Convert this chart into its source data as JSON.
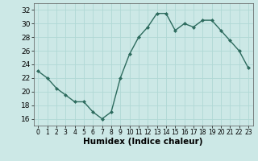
{
  "x": [
    0,
    1,
    2,
    3,
    4,
    5,
    6,
    7,
    8,
    9,
    10,
    11,
    12,
    13,
    14,
    15,
    16,
    17,
    18,
    19,
    20,
    21,
    22,
    23
  ],
  "y": [
    23,
    22,
    20.5,
    19.5,
    18.5,
    18.5,
    17,
    16,
    17,
    22,
    25.5,
    28,
    29.5,
    31.5,
    31.5,
    29,
    30,
    29.5,
    30.5,
    30.5,
    29,
    27.5,
    26,
    23.5
  ],
  "line_color": "#2d6b5e",
  "marker": "D",
  "marker_size": 2.0,
  "bg_color": "#cce8e6",
  "grid_color": "#b0d8d5",
  "xlabel": "Humidex (Indice chaleur)",
  "ylim": [
    15,
    33
  ],
  "xlim": [
    -0.5,
    23.5
  ],
  "yticks": [
    16,
    18,
    20,
    22,
    24,
    26,
    28,
    30,
    32
  ],
  "xticks": [
    0,
    1,
    2,
    3,
    4,
    5,
    6,
    7,
    8,
    9,
    10,
    11,
    12,
    13,
    14,
    15,
    16,
    17,
    18,
    19,
    20,
    21,
    22,
    23
  ],
  "xlabel_fontsize": 7.5,
  "tick_fontsize": 6.5,
  "line_width": 1.0
}
